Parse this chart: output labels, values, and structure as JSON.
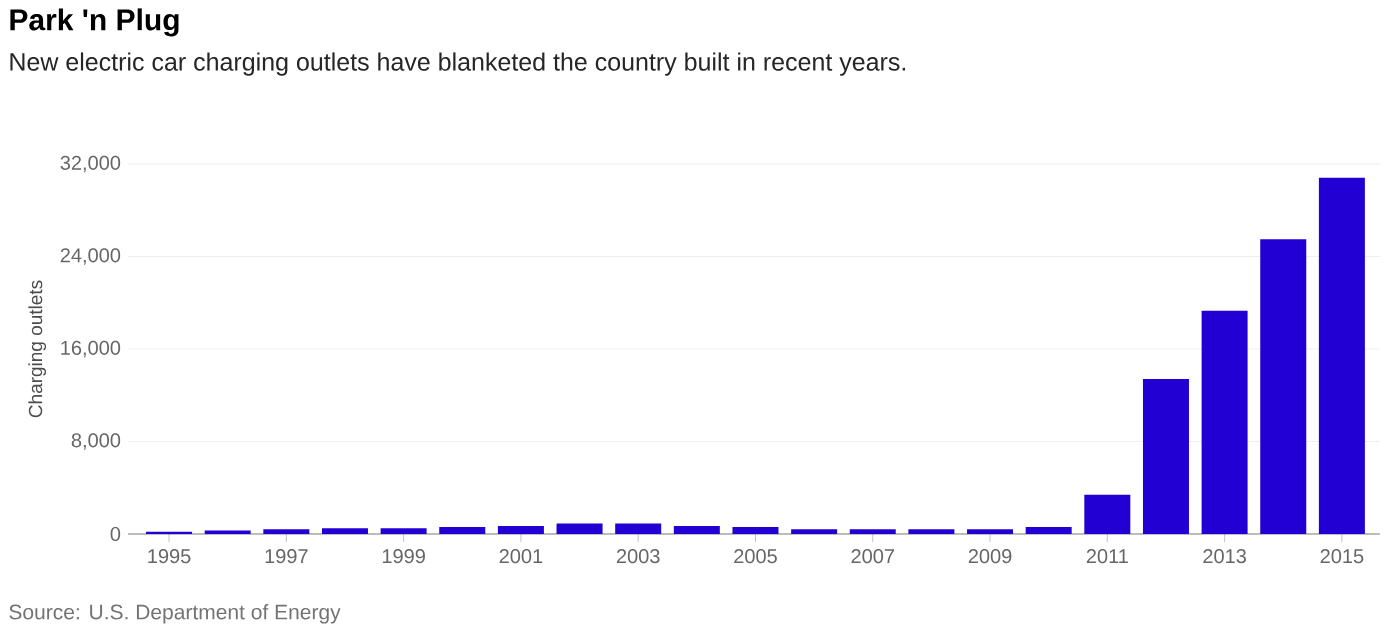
{
  "chart_data": {
    "type": "bar",
    "title": "Park 'n Plug",
    "subtitle": "New electric car charging outlets have blanketed the country built in recent years.",
    "ylabel": "Charging outlets",
    "categories": [
      "1995",
      null,
      "1997",
      null,
      "1999",
      null,
      "2001",
      null,
      "2003",
      null,
      "2005",
      null,
      "2007",
      null,
      "2009",
      null,
      "2011",
      null,
      "2013",
      null,
      "2015"
    ],
    "values": [
      200,
      300,
      400,
      500,
      500,
      600,
      700,
      900,
      900,
      700,
      600,
      400,
      400,
      400,
      400,
      600,
      3400,
      13400,
      19300,
      25500,
      30800
    ],
    "color": "#2200d4",
    "ylim": [
      0,
      32000
    ],
    "yticks": [
      0,
      {
        "value": 8000,
        "label": "8,000"
      },
      {
        "value": 16000,
        "label": "16,000"
      },
      {
        "value": 24000,
        "label": "24,000"
      },
      {
        "value": 32000,
        "label": "32,000"
      }
    ],
    "grid": "y",
    "annotations": [
      "Source: U.S. Department of Energy"
    ]
  }
}
